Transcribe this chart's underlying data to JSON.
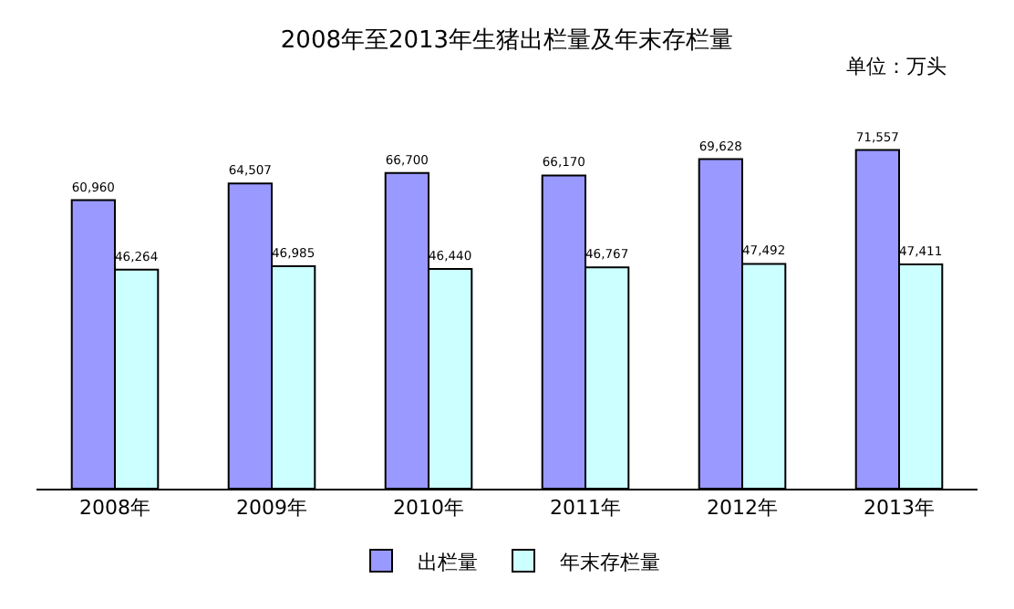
{
  "chart_data": {
    "type": "bar",
    "title": "2008年至2013年生猪出栏量及年末存栏量",
    "annotations": [
      "单位：万头"
    ],
    "categories": [
      "2008年",
      "2009年",
      "2010年",
      "2011年",
      "2012年",
      "2013年"
    ],
    "series": [
      {
        "name": "出栏量",
        "color": "#9999ff",
        "values": [
          60960,
          64507,
          66700,
          66170,
          69628,
          71557
        ],
        "value_labels": [
          "60,960",
          "64,507",
          "66,700",
          "66,170",
          "69,628",
          "71,557"
        ]
      },
      {
        "name": "年末存栏量",
        "color": "#ccffff",
        "values": [
          46264,
          46985,
          46440,
          46767,
          47492,
          47411
        ],
        "value_labels": [
          "46,264",
          "46,985",
          "46,440",
          "46,767",
          "47,492",
          "47,411"
        ]
      }
    ],
    "legend": "bottom"
  }
}
